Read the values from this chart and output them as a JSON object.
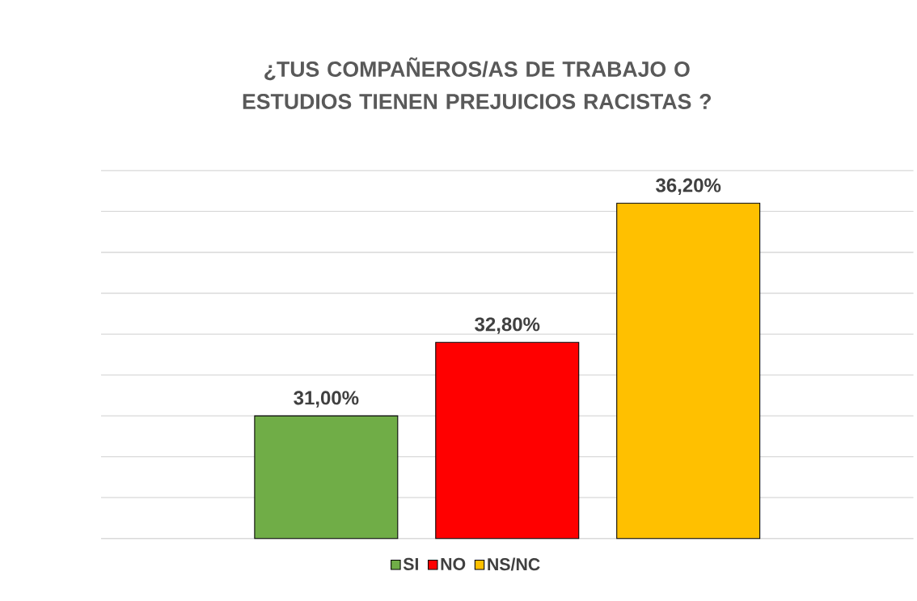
{
  "chart_data": {
    "type": "bar",
    "title": "¿TUS COMPAÑEROS/AS DE TRABAJO O ESTUDIOS TIENEN PREJUICIOS  RACISTAS ?",
    "categories": [
      null
    ],
    "series": [
      {
        "name": "SI",
        "color": "#70ad47",
        "values": [
          31.0
        ],
        "value_labels": [
          "31,00%"
        ]
      },
      {
        "name": "NO",
        "color": "#ff0000",
        "values": [
          32.8
        ],
        "value_labels": [
          "32,80%"
        ]
      },
      {
        "name": "NS/NC",
        "color": "#ffc000",
        "values": [
          36.2
        ],
        "value_labels": [
          "36,20%"
        ]
      }
    ],
    "ylim": [
      28,
      37
    ],
    "yticks": [
      {
        "value": 28,
        "label": null
      },
      {
        "value": 29,
        "label": null
      },
      {
        "value": 30,
        "label": null
      },
      {
        "value": 31,
        "label": null
      },
      {
        "value": 32,
        "label": null
      },
      {
        "value": 33,
        "label": null
      },
      {
        "value": 34,
        "label": null
      },
      {
        "value": 35,
        "label": null
      },
      {
        "value": 36,
        "label": null
      },
      {
        "value": 37,
        "label": null
      }
    ],
    "grid": "y",
    "legend": "bottom"
  }
}
